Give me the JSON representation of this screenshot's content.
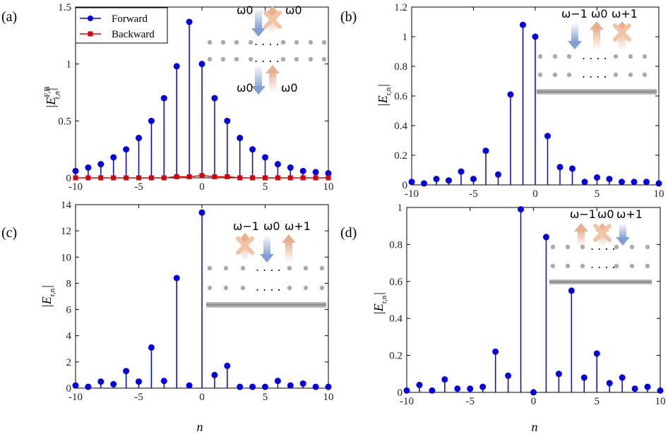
{
  "colors": {
    "forward": "#0000ee",
    "backward": "#dd0000",
    "axis": "#000000",
    "arrow_up": "#e9b08e",
    "arrow_down": "#7f9fd6",
    "waveguide": "#999999"
  },
  "chart_data": [
    {
      "id": "a",
      "panel_label": "(a)",
      "type": "stem",
      "ylabel": "|E_{t,n}^{F,B}|",
      "xlabel": "",
      "xlim": [
        -10,
        10
      ],
      "ylim": [
        0,
        1.5
      ],
      "xticks": [
        "-10",
        "-5",
        "0",
        "5",
        "10"
      ],
      "yticks": [
        "0",
        "0.5",
        "1",
        "1.5"
      ],
      "series": [
        {
          "name": "Forward",
          "marker": "circle",
          "x": [
            -10,
            -9,
            -8,
            -7,
            -6,
            -5,
            -4,
            -3,
            -2,
            -1,
            0,
            1,
            2,
            3,
            4,
            5,
            6,
            7,
            8,
            9,
            10
          ],
          "values": [
            0.06,
            0.09,
            0.12,
            0.18,
            0.25,
            0.35,
            0.5,
            0.7,
            0.98,
            1.37,
            1.0,
            0.7,
            0.5,
            0.35,
            0.25,
            0.18,
            0.12,
            0.09,
            0.06,
            0.05,
            0.04
          ]
        },
        {
          "name": "Backward",
          "marker": "square",
          "x": [
            -10,
            -9,
            -8,
            -7,
            -6,
            -5,
            -4,
            -3,
            -2,
            -1,
            0,
            1,
            2,
            3,
            4,
            5,
            6,
            7,
            8,
            9,
            10
          ],
          "values": [
            0.0,
            0.0,
            0.0,
            0.0,
            0.0,
            0.0,
            0.0,
            0.0,
            0.01,
            0.01,
            0.02,
            0.01,
            0.01,
            0.0,
            0.0,
            0.0,
            0.0,
            0.0,
            0.0,
            0.0,
            0.0
          ]
        }
      ],
      "legend": [
        "Forward",
        "Backward"
      ],
      "inset": {
        "top_labels": [
          "ω0",
          "ω0"
        ],
        "bottom_labels": [
          "ω0",
          "ω0"
        ],
        "dots": ". . . ."
      }
    },
    {
      "id": "b",
      "panel_label": "(b)",
      "type": "stem",
      "ylabel": "|E_{r,n}|",
      "xlabel": "",
      "xlim": [
        -10,
        10
      ],
      "ylim": [
        0,
        1.2
      ],
      "xticks": [
        "-10",
        "-5",
        "0",
        "5",
        "10"
      ],
      "yticks": [
        "0",
        "0.2",
        "0.4",
        "0.6",
        "0.8",
        "1",
        "1.2"
      ],
      "series": [
        {
          "name": "r",
          "marker": "circle",
          "x": [
            -10,
            -9,
            -8,
            -7,
            -6,
            -5,
            -4,
            -3,
            -2,
            -1,
            0,
            1,
            2,
            3,
            4,
            5,
            6,
            7,
            8,
            9,
            10
          ],
          "values": [
            0.02,
            0.01,
            0.04,
            0.03,
            0.09,
            0.04,
            0.23,
            0.07,
            0.61,
            1.08,
            1.0,
            0.33,
            0.12,
            0.11,
            0.02,
            0.05,
            0.04,
            0.02,
            0.02,
            0.02,
            0.01
          ]
        }
      ],
      "inset": {
        "labels": [
          "ω−1",
          "ω0",
          "ω+1"
        ],
        "dots": ". . . ."
      }
    },
    {
      "id": "c",
      "panel_label": "(c)",
      "type": "stem",
      "ylabel": "|E_{r,n}|",
      "xlabel": "n",
      "xlim": [
        -10,
        10
      ],
      "ylim": [
        0,
        14
      ],
      "xticks": [
        "-10",
        "-5",
        "0",
        "5",
        "10"
      ],
      "yticks": [
        "0",
        "2",
        "4",
        "6",
        "8",
        "10",
        "12",
        "14"
      ],
      "series": [
        {
          "name": "r",
          "marker": "circle",
          "x": [
            -10,
            -9,
            -8,
            -7,
            -6,
            -5,
            -4,
            -3,
            -2,
            -1,
            0,
            1,
            2,
            3,
            4,
            5,
            6,
            7,
            8,
            9,
            10
          ],
          "values": [
            0.2,
            0.1,
            0.5,
            0.3,
            1.3,
            0.5,
            3.1,
            0.55,
            8.4,
            0.2,
            13.4,
            1.0,
            1.7,
            0.1,
            0.1,
            0.1,
            0.55,
            0.2,
            0.35,
            0.1,
            0.1
          ]
        }
      ],
      "inset": {
        "labels": [
          "ω−1",
          "ω0",
          "ω+1"
        ],
        "dots": ". . . ."
      }
    },
    {
      "id": "d",
      "panel_label": "(d)",
      "type": "stem",
      "ylabel": "|E_{r,n}|",
      "xlabel": "n",
      "xlim": [
        -10,
        10
      ],
      "ylim": [
        0,
        1
      ],
      "xticks": [
        "-10",
        "-5",
        "0",
        "5",
        "10"
      ],
      "yticks": [
        "0",
        "0.2",
        "0.4",
        "0.6",
        "0.8",
        "1"
      ],
      "series": [
        {
          "name": "r",
          "marker": "circle",
          "x": [
            -10,
            -9,
            -8,
            -7,
            -6,
            -5,
            -4,
            -3,
            -2,
            -1,
            0,
            1,
            2,
            3,
            4,
            5,
            6,
            7,
            8,
            9,
            10
          ],
          "values": [
            0.01,
            0.04,
            0.01,
            0.07,
            0.02,
            0.02,
            0.03,
            0.22,
            0.09,
            0.99,
            0.0,
            0.84,
            0.1,
            0.55,
            0.08,
            0.21,
            0.05,
            0.08,
            0.02,
            0.03,
            0.01
          ]
        }
      ],
      "inset": {
        "labels": [
          "ω−1",
          "ω0",
          "ω+1"
        ],
        "dots": ". . . ."
      }
    }
  ]
}
